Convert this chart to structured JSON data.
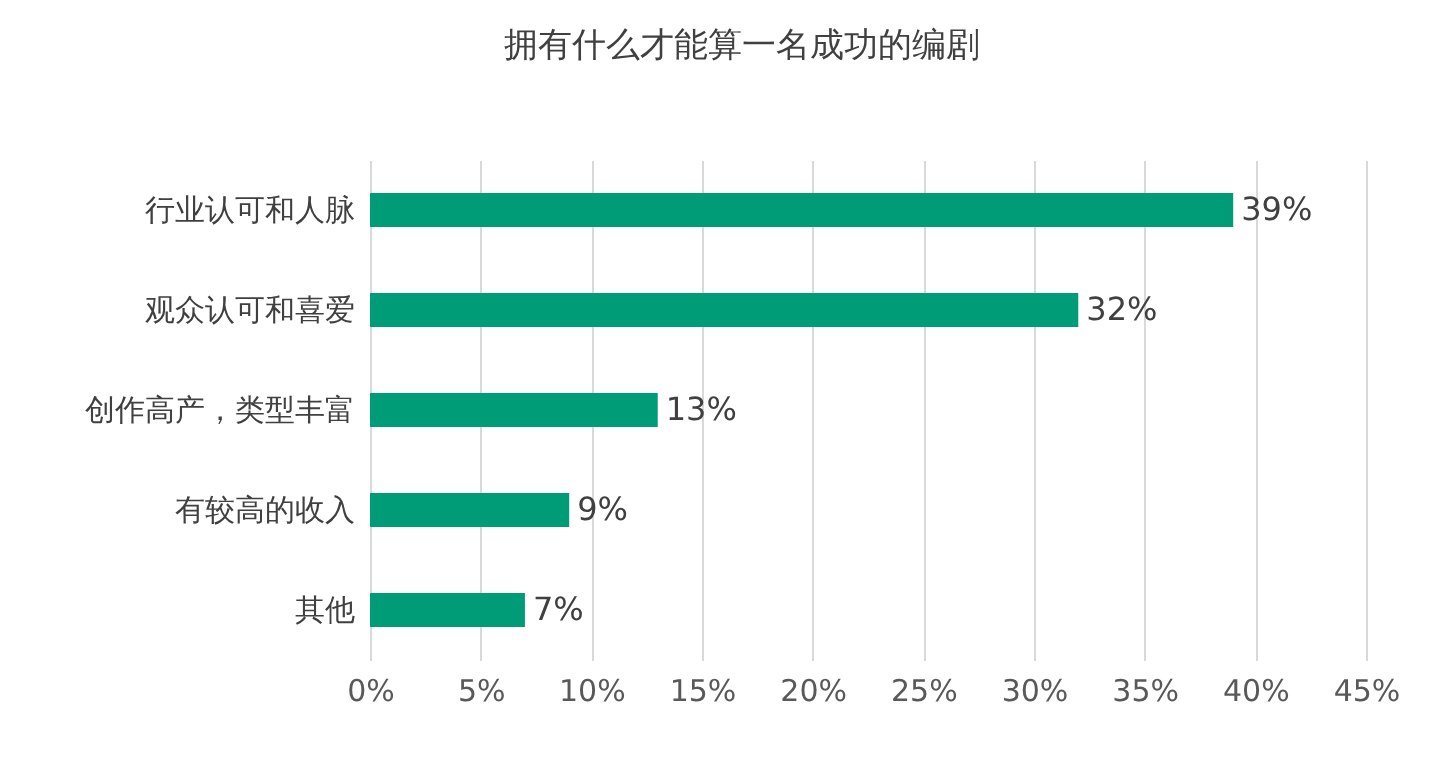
{
  "chart_data": {
    "type": "bar",
    "orientation": "horizontal",
    "title": "拥有什么才能算一名成功的编剧",
    "categories": [
      "行业认可和人脉",
      "观众认可和喜爱",
      "创作高产，类型丰富",
      "有较高的收入",
      "其他"
    ],
    "values": [
      39,
      32,
      13,
      9,
      7
    ],
    "value_labels": [
      "39%",
      "32%",
      "13%",
      "9%",
      "7%"
    ],
    "color": "#009b77",
    "xlim": [
      0,
      45
    ],
    "xticks": [
      {
        "value": 0,
        "label": "0%"
      },
      {
        "value": 5,
        "label": "5%"
      },
      {
        "value": 10,
        "label": "10%"
      },
      {
        "value": 15,
        "label": "15%"
      },
      {
        "value": 20,
        "label": "20%"
      },
      {
        "value": 25,
        "label": "25%"
      },
      {
        "value": 30,
        "label": "30%"
      },
      {
        "value": 35,
        "label": "35%"
      },
      {
        "value": 40,
        "label": "40%"
      },
      {
        "value": 45,
        "label": "45%"
      }
    ],
    "grid": "x"
  }
}
